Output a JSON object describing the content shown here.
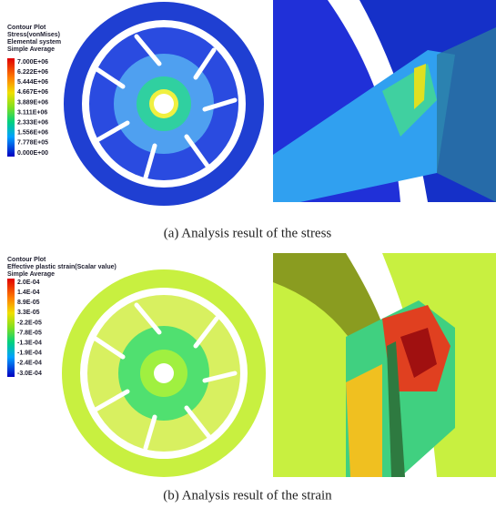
{
  "panels": [
    {
      "legend_title": [
        "Contour Plot",
        "Stress(vonMises)",
        "Elemental system",
        "Simple Average"
      ],
      "legend_labels": [
        "7.000E+06",
        "6.222E+06",
        "5.444E+06",
        "4.667E+06",
        "3.889E+06",
        "3.111E+06",
        "2.333E+06",
        "1.556E+06",
        "7.778E+05",
        "0.000E+00"
      ],
      "caption": "(a) Analysis result of the stress"
    },
    {
      "legend_title": [
        "Contour Plot",
        "Effective plastic strain(Scalar value)",
        "Simple Average"
      ],
      "legend_labels": [
        "2.0E-04",
        "1.4E-04",
        "8.9E-05",
        "3.3E-05",
        "-2.2E-05",
        "-7.8E-05",
        "-1.3E-04",
        "-1.9E-04",
        "-2.4E-04",
        "-3.0E-04"
      ],
      "caption": "(b) Analysis result of the strain"
    }
  ]
}
